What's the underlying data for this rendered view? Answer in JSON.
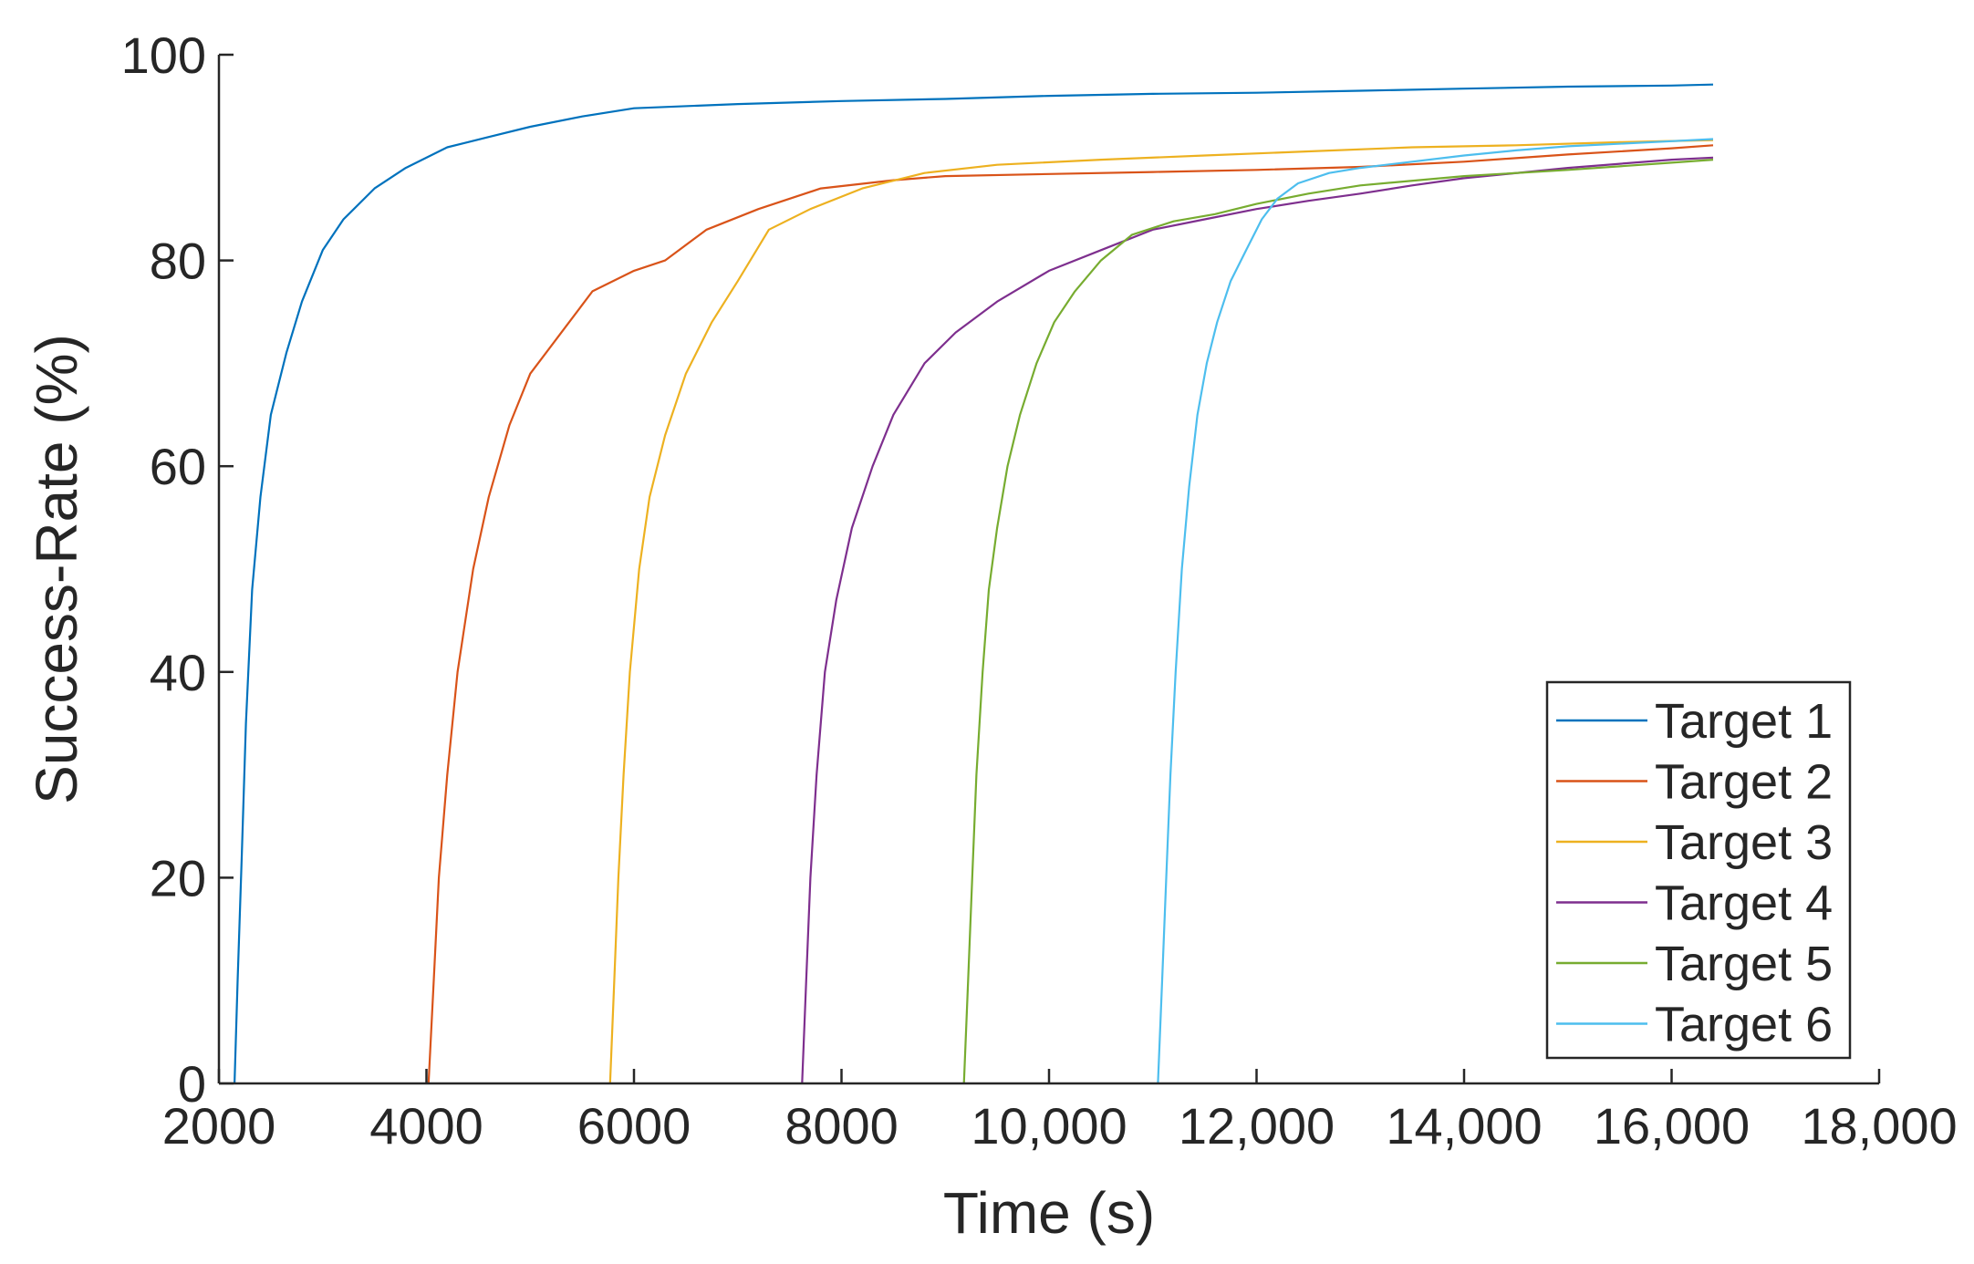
{
  "chart_data": {
    "type": "line",
    "title": "",
    "xlabel": "Time (s)",
    "ylabel": "Success-Rate (%)",
    "xlim": [
      2000,
      18000
    ],
    "ylim": [
      0,
      100
    ],
    "xticks": [
      2000,
      4000,
      6000,
      8000,
      10000,
      12000,
      14000,
      16000,
      18000
    ],
    "xtick_labels": [
      "2000",
      "4000",
      "6000",
      "8000",
      "10,000",
      "12,000",
      "14,000",
      "16,000",
      "18,000"
    ],
    "yticks": [
      0,
      20,
      40,
      60,
      80,
      100
    ],
    "ytick_labels": [
      "0",
      "20",
      "40",
      "60",
      "80",
      "100"
    ],
    "grid": false,
    "legend_position": "bottom-right",
    "series": [
      {
        "name": "Target 1",
        "color": "#0072BD",
        "x": [
          2150,
          2180,
          2220,
          2260,
          2320,
          2400,
          2500,
          2650,
          2800,
          3000,
          3200,
          3500,
          3800,
          4200,
          4600,
          5000,
          5500,
          6000,
          7000,
          8000,
          9000,
          10000,
          11000,
          12000,
          13000,
          14000,
          15000,
          16000,
          16400
        ],
        "y": [
          0,
          10,
          22,
          35,
          48,
          57,
          65,
          71,
          76,
          81,
          84,
          87,
          89,
          91,
          92,
          93,
          94,
          94.8,
          95.2,
          95.5,
          95.7,
          96,
          96.2,
          96.3,
          96.5,
          96.7,
          96.9,
          97.0,
          97.1
        ]
      },
      {
        "name": "Target 2",
        "color": "#D95319",
        "x": [
          4020,
          4070,
          4120,
          4200,
          4300,
          4450,
          4600,
          4800,
          5000,
          5300,
          5600,
          6000,
          6300,
          6700,
          7200,
          7800,
          8500,
          9000,
          10000,
          11000,
          12000,
          13000,
          14000,
          15000,
          16000,
          16400
        ],
        "y": [
          0,
          10,
          20,
          30,
          40,
          50,
          57,
          64,
          69,
          73,
          77,
          79,
          80,
          83,
          85,
          87,
          87.8,
          88.2,
          88.4,
          88.6,
          88.8,
          89.1,
          89.6,
          90.3,
          90.9,
          91.2
        ]
      },
      {
        "name": "Target 3",
        "color": "#EDB120",
        "x": [
          5770,
          5810,
          5850,
          5900,
          5960,
          6050,
          6150,
          6300,
          6500,
          6750,
          7000,
          7300,
          7700,
          8200,
          8800,
          9500,
          10500,
          11500,
          12500,
          13500,
          14500,
          15500,
          16400
        ],
        "y": [
          0,
          10,
          20,
          30,
          40,
          50,
          57,
          63,
          69,
          74,
          78,
          83,
          85,
          87,
          88.5,
          89.3,
          89.8,
          90.2,
          90.6,
          91,
          91.2,
          91.5,
          91.7
        ]
      },
      {
        "name": "Target 4",
        "color": "#7E2F8E",
        "x": [
          7620,
          7660,
          7700,
          7760,
          7840,
          7950,
          8100,
          8300,
          8500,
          8800,
          9100,
          9500,
          10000,
          10500,
          11000,
          11500,
          12000,
          12500,
          13000,
          13500,
          14000,
          15000,
          16000,
          16400
        ],
        "y": [
          0,
          10,
          20,
          30,
          40,
          47,
          54,
          60,
          65,
          70,
          73,
          76,
          79,
          81,
          83,
          84,
          85,
          85.8,
          86.5,
          87.3,
          88,
          89,
          89.8,
          90
        ]
      },
      {
        "name": "Target 5",
        "color": "#77AC30",
        "x": [
          9180,
          9220,
          9260,
          9300,
          9360,
          9420,
          9500,
          9600,
          9720,
          9880,
          10050,
          10250,
          10500,
          10800,
          11200,
          11600,
          12000,
          12500,
          13000,
          14000,
          15000,
          16000,
          16400
        ],
        "y": [
          0,
          10,
          20,
          30,
          40,
          48,
          54,
          60,
          65,
          70,
          74,
          77,
          80,
          82.5,
          83.8,
          84.5,
          85.5,
          86.5,
          87.3,
          88.2,
          88.8,
          89.5,
          89.8
        ]
      },
      {
        "name": "Target 6",
        "color": "#4DBEEE",
        "x": [
          11050,
          11090,
          11130,
          11170,
          11220,
          11280,
          11350,
          11430,
          11520,
          11620,
          11750,
          11900,
          12050,
          12200,
          12400,
          12700,
          13000,
          13500,
          14000,
          14500,
          15000,
          16000,
          16400
        ],
        "y": [
          0,
          10,
          20,
          30,
          40,
          50,
          58,
          65,
          70,
          74,
          78,
          81,
          84,
          86,
          87.5,
          88.5,
          89,
          89.6,
          90.2,
          90.7,
          91.1,
          91.6,
          91.8
        ]
      }
    ]
  }
}
